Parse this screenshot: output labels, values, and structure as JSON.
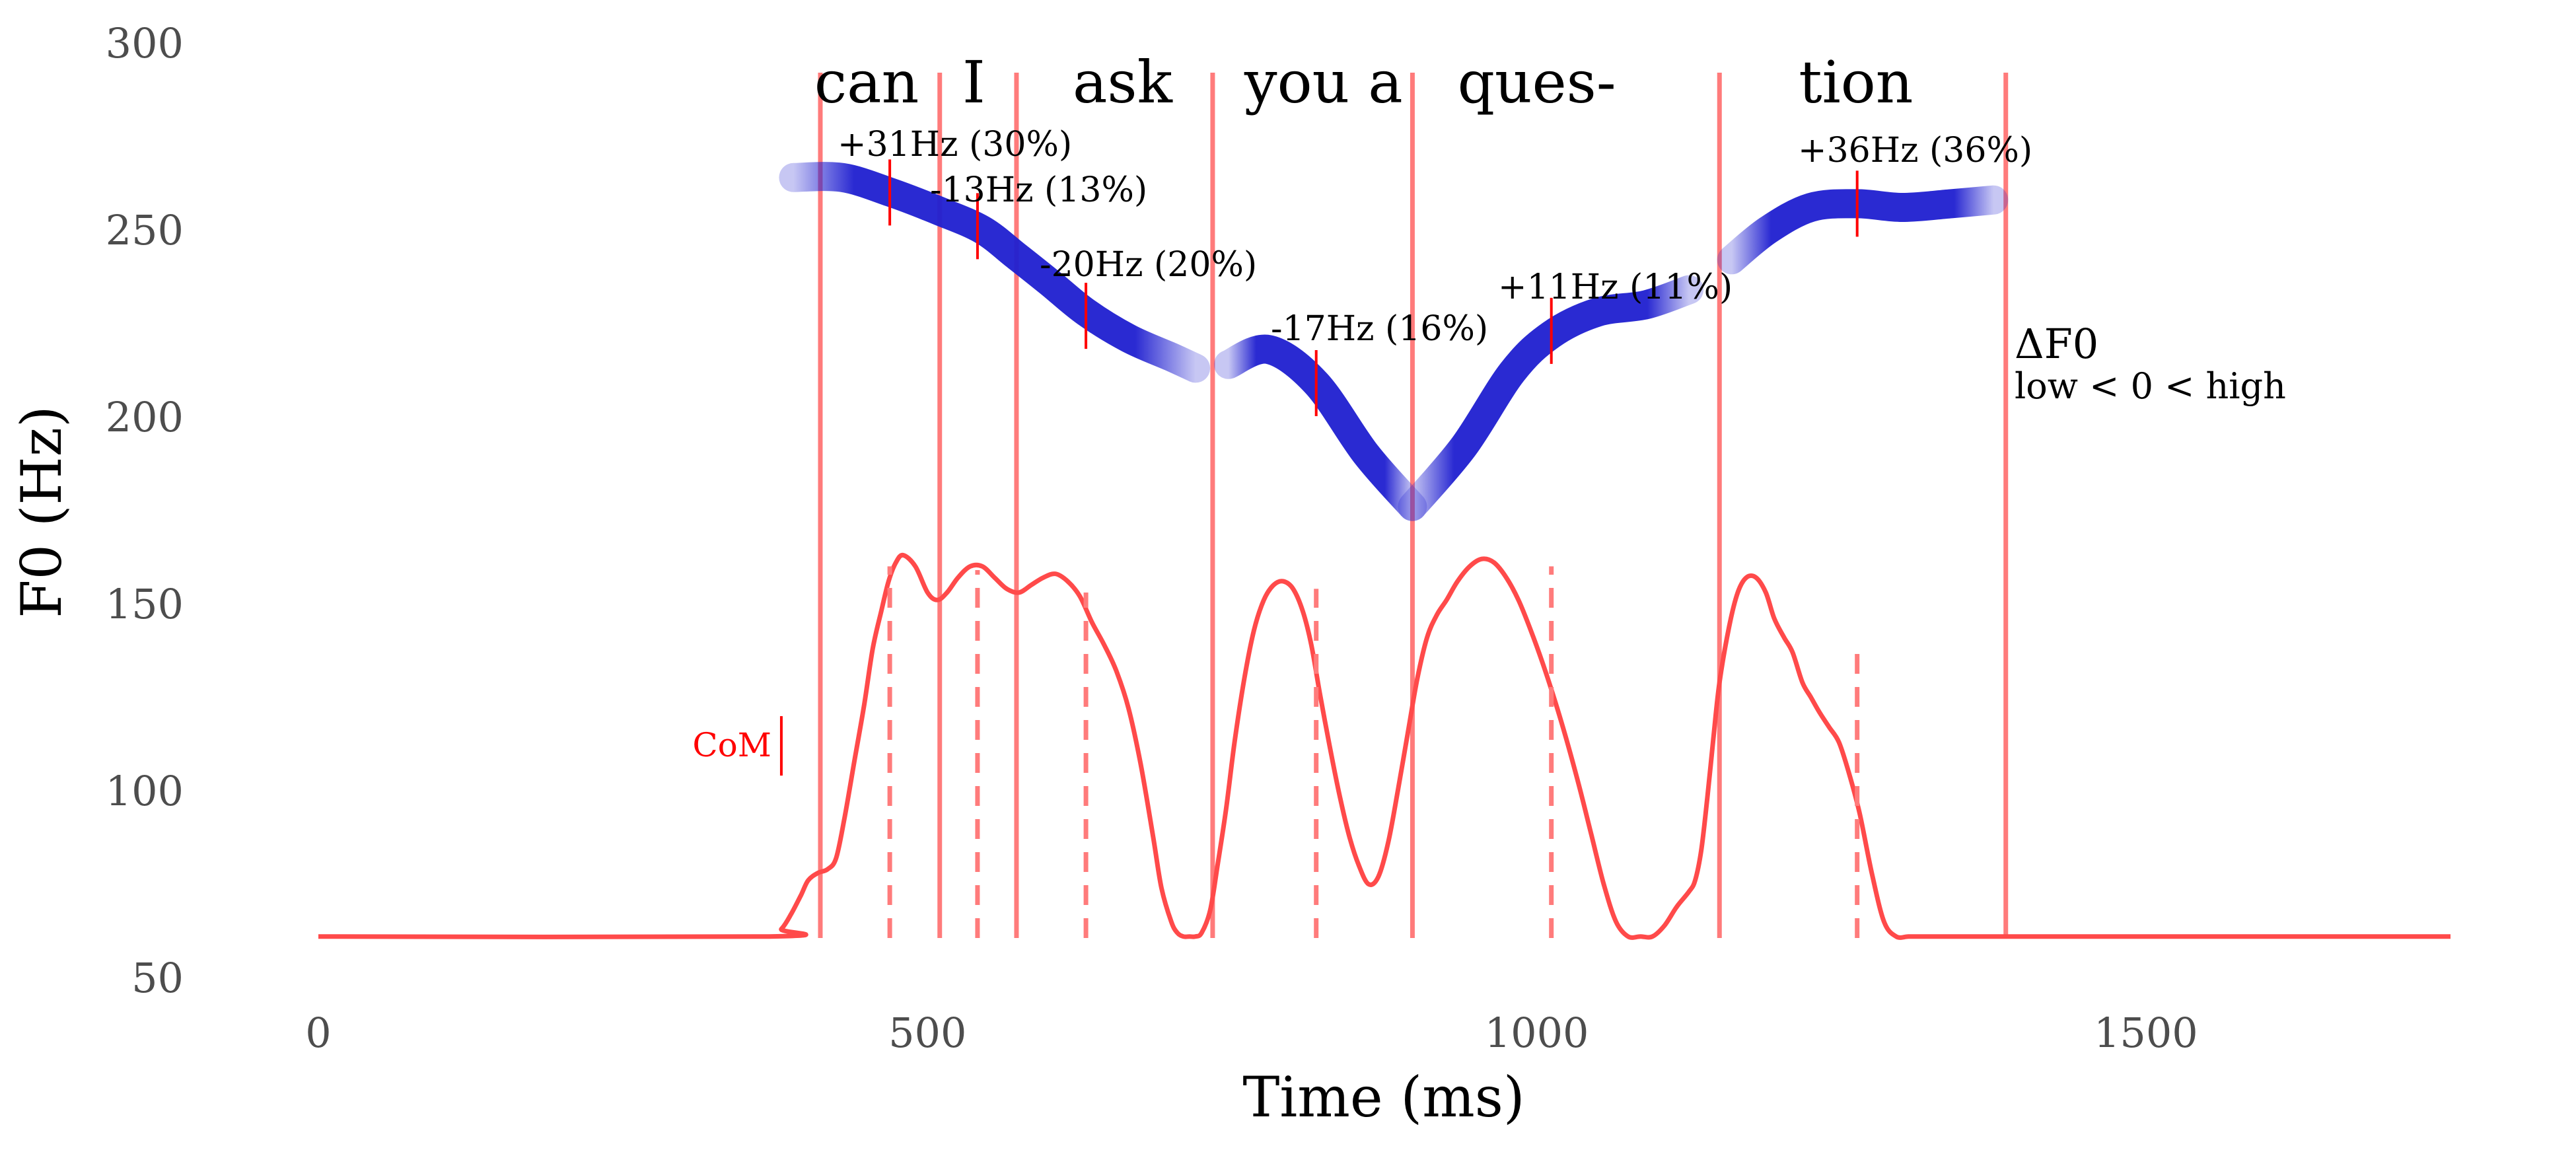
{
  "chart_data": {
    "type": "line",
    "xlabel": "Time (ms)",
    "ylabel": "F0 (Hz)",
    "xlim": [
      0,
      1750
    ],
    "ylim": [
      50,
      300
    ],
    "xticks": [
      0,
      500,
      1000,
      1500
    ],
    "yticks": [
      50,
      100,
      150,
      200,
      250,
      300
    ],
    "grid": false,
    "colors": {
      "signal": "#ff4a4a",
      "boundary": "#ff7b7b",
      "ribbon": "#1f1fd0",
      "com": "#ff0000"
    },
    "signal_curve": {
      "x": [
        0,
        370,
        380,
        388,
        396,
        402,
        410,
        418,
        425,
        432,
        440,
        448,
        455,
        462,
        468,
        474,
        480,
        490,
        500,
        508,
        516,
        525,
        535,
        545,
        555,
        565,
        575,
        585,
        595,
        605,
        615,
        625,
        635,
        645,
        655,
        665,
        675,
        685,
        692,
        700,
        705,
        710,
        715,
        720,
        725,
        732,
        738,
        745,
        752,
        760,
        768,
        776,
        784,
        792,
        800,
        808,
        815,
        822,
        830,
        838,
        846,
        854,
        862,
        870,
        878,
        886,
        895,
        902,
        910,
        918,
        926,
        935,
        945,
        955,
        965,
        975,
        985,
        995,
        1005,
        1015,
        1025,
        1035,
        1045,
        1055,
        1065,
        1075,
        1085,
        1095,
        1105,
        1115,
        1125,
        1130,
        1135,
        1140,
        1145,
        1150,
        1158,
        1165,
        1172,
        1180,
        1188,
        1195,
        1203,
        1210,
        1218,
        1225,
        1232,
        1240,
        1248,
        1256,
        1265,
        1275,
        1285,
        1295,
        1305,
        1315,
        1325,
        1335,
        1345,
        1355,
        1365,
        1372,
        1378,
        1385,
        1750
      ],
      "y": [
        61,
        61,
        63,
        67,
        72,
        76,
        78,
        79,
        82,
        93,
        108,
        123,
        138,
        148,
        156,
        161,
        163,
        160,
        153,
        151,
        153,
        157,
        160,
        160,
        157,
        154,
        153,
        155,
        157,
        158,
        156,
        152,
        145,
        139,
        132,
        122,
        107,
        88,
        74,
        65,
        62,
        61,
        61,
        61,
        62,
        68,
        80,
        95,
        113,
        130,
        143,
        151,
        155,
        156,
        154,
        148,
        139,
        126,
        112,
        99,
        88,
        80,
        75,
        77,
        86,
        100,
        117,
        130,
        141,
        147,
        151,
        156,
        160,
        162,
        161,
        157,
        151,
        143,
        134,
        124,
        113,
        101,
        88,
        75,
        65,
        61,
        61,
        61,
        64,
        69,
        73,
        76,
        84,
        98,
        114,
        129,
        144,
        153,
        157,
        157,
        153,
        146,
        141,
        137,
        129,
        125,
        121,
        117,
        113,
        105,
        94,
        78,
        65,
        61,
        61,
        61,
        61,
        61,
        61,
        61,
        61,
        61,
        61,
        61,
        61
      ]
    },
    "com_marker": {
      "label": "CoM",
      "x": 380,
      "y": 112
    },
    "word_labels": [
      {
        "text": "can",
        "x": 450
      },
      {
        "text": "I",
        "x": 538
      },
      {
        "text": "ask",
        "x": 660
      },
      {
        "text": "you a",
        "x": 825
      },
      {
        "text": "ques-",
        "x": 1000
      },
      {
        "text": "tion",
        "x": 1262
      }
    ],
    "boundaries_ms": [
      412,
      510,
      573,
      734,
      898,
      1150,
      1385
    ],
    "com_points": [
      {
        "x": 469,
        "signal": 160,
        "ribbon": 260,
        "label": "+31Hz (30%)"
      },
      {
        "x": 541,
        "signal": 159,
        "ribbon": 251,
        "label": "-13Hz (13%)"
      },
      {
        "x": 630,
        "signal": 153,
        "ribbon": 227,
        "label": "-20Hz (20%)"
      },
      {
        "x": 819,
        "signal": 154,
        "ribbon": 209,
        "label": "-17Hz (16%)"
      },
      {
        "x": 1012,
        "signal": 160,
        "ribbon": 223,
        "label": "+11Hz (11%)"
      },
      {
        "x": 1263,
        "signal": 137,
        "ribbon": 257,
        "label": "+36Hz (36%)"
      }
    ],
    "ribbons": [
      {
        "x": [
          390,
          430,
          470,
          510,
          545,
          573,
          600,
          630,
          665,
          700,
          720
        ],
        "y": [
          264,
          264,
          260,
          255,
          250,
          243,
          236,
          228,
          221,
          216,
          213
        ]
      },
      {
        "x": [
          747,
          780,
          819,
          860,
          898
        ],
        "y": [
          214,
          218,
          209,
          190,
          176
        ]
      },
      {
        "x": [
          898,
          940,
          980,
          1012,
          1050,
          1090,
          1125
        ],
        "y": [
          176,
          192,
          212,
          222,
          228,
          230,
          234
        ]
      },
      {
        "x": [
          1160,
          1190,
          1225,
          1263,
          1300,
          1340,
          1375
        ],
        "y": [
          242,
          250,
          256,
          257,
          256,
          257,
          258
        ]
      }
    ],
    "legend": {
      "title": "ΔF0",
      "subtitle": "low < 0 < high"
    }
  }
}
